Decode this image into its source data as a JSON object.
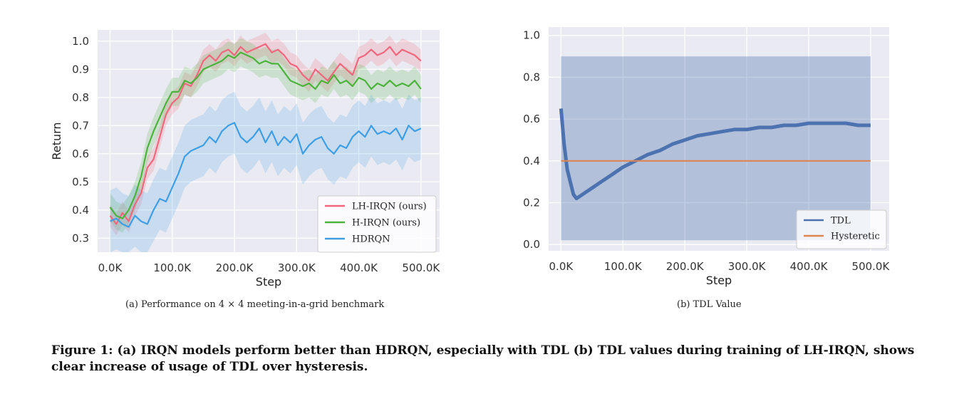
{
  "chart_data": [
    {
      "type": "line",
      "xlabel": "Step",
      "ylabel": "Return",
      "xticks": [
        "0.0K",
        "100.0K",
        "200.0K",
        "300.0K",
        "400.0K",
        "500.0K"
      ],
      "xtick_values": [
        0,
        100000,
        200000,
        300000,
        400000,
        500000
      ],
      "yticks": [
        "0.3",
        "0.4",
        "0.5",
        "0.6",
        "0.7",
        "0.8",
        "0.9",
        "1.0"
      ],
      "ytick_values": [
        0.3,
        0.4,
        0.5,
        0.6,
        0.7,
        0.8,
        0.9,
        1.0
      ],
      "xlim": [
        -20000,
        530000
      ],
      "ylim": [
        0.25,
        1.04
      ],
      "grid": true,
      "legend": "bottom-right",
      "legend_entries": [
        "LH-IRQN (ours)",
        "H-IRQN (ours)",
        "HDRQN"
      ],
      "colors": [
        "#f0677e",
        "#4db33d",
        "#3f9fe4"
      ],
      "x": [
        0,
        10000,
        20000,
        30000,
        40000,
        50000,
        60000,
        70000,
        80000,
        90000,
        100000,
        110000,
        120000,
        130000,
        140000,
        150000,
        160000,
        170000,
        180000,
        190000,
        200000,
        210000,
        220000,
        230000,
        240000,
        250000,
        260000,
        270000,
        280000,
        290000,
        300000,
        310000,
        320000,
        330000,
        340000,
        350000,
        360000,
        370000,
        380000,
        390000,
        400000,
        410000,
        420000,
        430000,
        440000,
        450000,
        460000,
        470000,
        480000,
        490000,
        500000
      ],
      "series": [
        {
          "name": "LH-IRQN (ours)",
          "values": [
            0.38,
            0.35,
            0.39,
            0.36,
            0.42,
            0.46,
            0.55,
            0.58,
            0.66,
            0.74,
            0.78,
            0.8,
            0.85,
            0.84,
            0.88,
            0.93,
            0.95,
            0.93,
            0.96,
            0.97,
            0.95,
            0.98,
            0.96,
            0.97,
            0.98,
            0.99,
            0.96,
            0.97,
            0.95,
            0.92,
            0.91,
            0.88,
            0.86,
            0.9,
            0.88,
            0.86,
            0.89,
            0.92,
            0.9,
            0.88,
            0.94,
            0.95,
            0.97,
            0.95,
            0.96,
            0.98,
            0.95,
            0.97,
            0.96,
            0.95,
            0.93
          ],
          "band": 0.04
        },
        {
          "name": "H-IRQN (ours)",
          "values": [
            0.41,
            0.38,
            0.37,
            0.4,
            0.45,
            0.52,
            0.62,
            0.68,
            0.73,
            0.78,
            0.82,
            0.82,
            0.86,
            0.85,
            0.87,
            0.9,
            0.91,
            0.92,
            0.93,
            0.95,
            0.94,
            0.96,
            0.95,
            0.94,
            0.92,
            0.93,
            0.92,
            0.92,
            0.89,
            0.86,
            0.85,
            0.84,
            0.85,
            0.83,
            0.86,
            0.85,
            0.88,
            0.85,
            0.86,
            0.84,
            0.87,
            0.86,
            0.83,
            0.85,
            0.84,
            0.86,
            0.84,
            0.85,
            0.84,
            0.86,
            0.83
          ],
          "band": 0.05
        },
        {
          "name": "HDRQN",
          "values": [
            0.36,
            0.37,
            0.35,
            0.34,
            0.38,
            0.36,
            0.35,
            0.4,
            0.44,
            0.43,
            0.48,
            0.53,
            0.59,
            0.61,
            0.62,
            0.63,
            0.66,
            0.64,
            0.68,
            0.7,
            0.71,
            0.66,
            0.64,
            0.66,
            0.69,
            0.64,
            0.68,
            0.63,
            0.66,
            0.64,
            0.67,
            0.6,
            0.63,
            0.65,
            0.66,
            0.62,
            0.6,
            0.63,
            0.62,
            0.66,
            0.68,
            0.66,
            0.7,
            0.67,
            0.68,
            0.67,
            0.69,
            0.65,
            0.7,
            0.68,
            0.69
          ],
          "band": 0.11
        }
      ]
    },
    {
      "type": "line",
      "xlabel": "Step",
      "ylabel": "",
      "xticks": [
        "0.0K",
        "100.0K",
        "200.0K",
        "300.0K",
        "400.0K",
        "500.0K"
      ],
      "xtick_values": [
        0,
        100000,
        200000,
        300000,
        400000,
        500000
      ],
      "yticks": [
        "0.0",
        "0.2",
        "0.4",
        "0.6",
        "0.8",
        "1.0"
      ],
      "ytick_values": [
        0.0,
        0.2,
        0.4,
        0.6,
        0.8,
        1.0
      ],
      "xlim": [
        -20000,
        530000
      ],
      "ylim": [
        -0.03,
        1.04
      ],
      "grid": true,
      "legend": "bottom-right",
      "legend_entries": [
        "TDL",
        "Hysteretic"
      ],
      "colors": [
        "#4c72b0",
        "#dd8452"
      ],
      "x": [
        0,
        5000,
        10000,
        15000,
        20000,
        25000,
        30000,
        40000,
        50000,
        60000,
        70000,
        80000,
        90000,
        100000,
        120000,
        140000,
        160000,
        180000,
        200000,
        220000,
        240000,
        260000,
        280000,
        300000,
        320000,
        340000,
        360000,
        380000,
        400000,
        420000,
        440000,
        460000,
        480000,
        500000
      ],
      "series": [
        {
          "name": "TDL",
          "values": [
            0.65,
            0.48,
            0.36,
            0.3,
            0.24,
            0.22,
            0.23,
            0.25,
            0.27,
            0.29,
            0.31,
            0.33,
            0.35,
            0.37,
            0.4,
            0.43,
            0.45,
            0.48,
            0.5,
            0.52,
            0.53,
            0.54,
            0.55,
            0.55,
            0.56,
            0.56,
            0.57,
            0.57,
            0.58,
            0.58,
            0.58,
            0.58,
            0.57,
            0.57
          ],
          "band_low": 0.02,
          "band_high": 0.9
        },
        {
          "name": "Hysteretic",
          "values": [
            0.4,
            0.4,
            0.4,
            0.4,
            0.4,
            0.4,
            0.4,
            0.4,
            0.4,
            0.4,
            0.4,
            0.4,
            0.4,
            0.4,
            0.4,
            0.4,
            0.4,
            0.4,
            0.4,
            0.4,
            0.4,
            0.4,
            0.4,
            0.4,
            0.4,
            0.4,
            0.4,
            0.4,
            0.4,
            0.4,
            0.4,
            0.4,
            0.4,
            0.4
          ]
        }
      ]
    }
  ],
  "subcaptions": {
    "a": "(a)  Performance on 4 × 4 meeting-in-a-grid benchmark",
    "b": "(b)  TDL Value"
  },
  "caption": "Figure 1: (a) IRQN models perform better than HDRQN, especially with TDL (b) TDL values during training of LH-IRQN, shows clear increase of usage of TDL over hysteresis."
}
